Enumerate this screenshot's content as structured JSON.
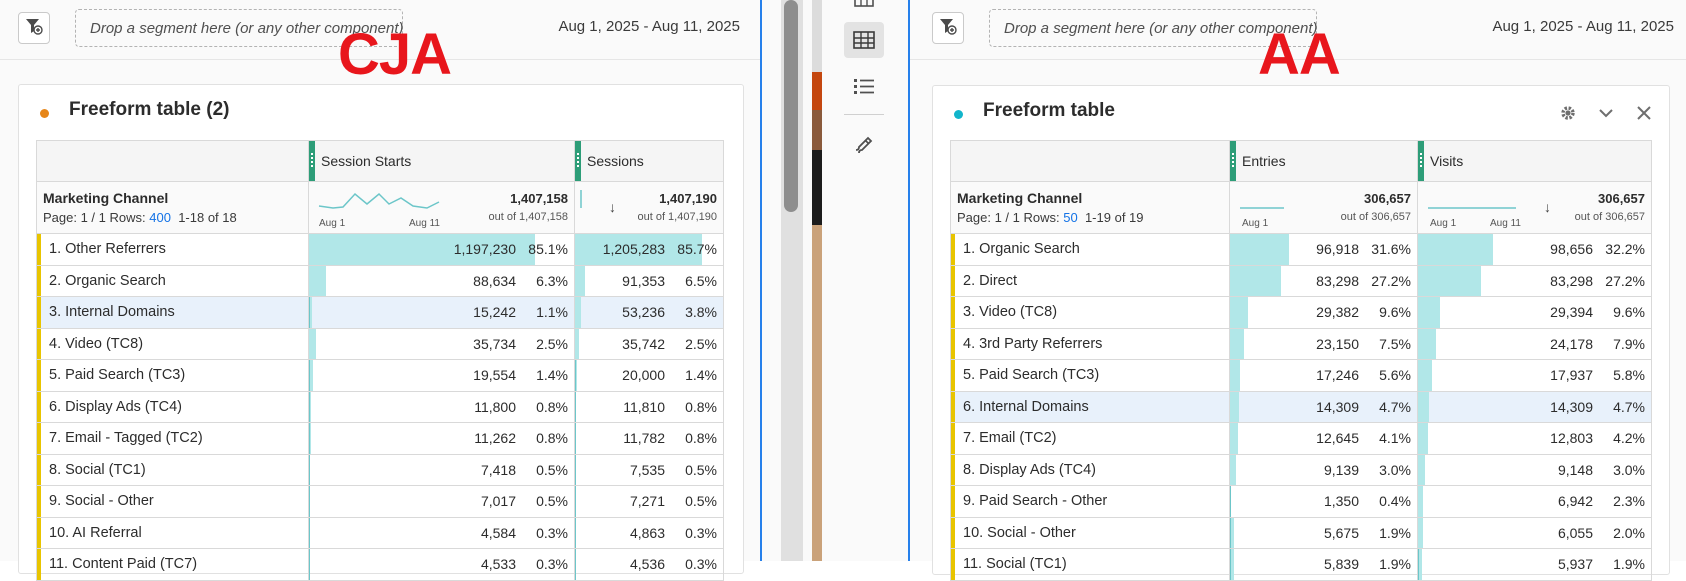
{
  "labels": {
    "left": "CJA",
    "right": "AA"
  },
  "left": {
    "drop_zone": "Drop a segment here (or any other component)",
    "date_range": "Aug 1, 2025 - Aug 11, 2025",
    "card_title": "Freeform table (2)",
    "dot_color": "#e68619",
    "dimension": {
      "title": "Marketing Channel",
      "page_label": "Page: 1 / 1 Rows:",
      "rows_value": "400",
      "range": "1-18 of 18"
    },
    "metric1": {
      "name": "Session Starts",
      "total": "1,407,158",
      "out_of": "out of 1,407,158",
      "axis_start": "Aug 1",
      "axis_end": "Aug 11"
    },
    "metric2": {
      "name": "Sessions",
      "total": "1,407,190",
      "out_of": "out of 1,407,190"
    },
    "rows": [
      {
        "label": "1.  Other Referrers",
        "m1": "1,197,230",
        "m1p": "85.1%",
        "m1f": 0.851,
        "m2": "1,205,283",
        "m2p": "85.7%",
        "m2f": 0.857
      },
      {
        "label": "2.  Organic Search",
        "m1": "88,634",
        "m1p": "6.3%",
        "m1f": 0.063,
        "m2": "91,353",
        "m2p": "6.5%",
        "m2f": 0.065
      },
      {
        "label": "3.  Internal Domains",
        "m1": "15,242",
        "m1p": "1.1%",
        "m1f": 0.011,
        "m2": "53,236",
        "m2p": "3.8%",
        "m2f": 0.038,
        "selected": true
      },
      {
        "label": "4.  Video (TC8)",
        "m1": "35,734",
        "m1p": "2.5%",
        "m1f": 0.025,
        "m2": "35,742",
        "m2p": "2.5%",
        "m2f": 0.025
      },
      {
        "label": "5.  Paid Search (TC3)",
        "m1": "19,554",
        "m1p": "1.4%",
        "m1f": 0.014,
        "m2": "20,000",
        "m2p": "1.4%",
        "m2f": 0.014
      },
      {
        "label": "6.  Display Ads (TC4)",
        "m1": "11,800",
        "m1p": "0.8%",
        "m1f": 0.008,
        "m2": "11,810",
        "m2p": "0.8%",
        "m2f": 0.008
      },
      {
        "label": "7.  Email - Tagged (TC2)",
        "m1": "11,262",
        "m1p": "0.8%",
        "m1f": 0.008,
        "m2": "11,782",
        "m2p": "0.8%",
        "m2f": 0.008
      },
      {
        "label": "8.  Social (TC1)",
        "m1": "7,418",
        "m1p": "0.5%",
        "m1f": 0.005,
        "m2": "7,535",
        "m2p": "0.5%",
        "m2f": 0.005
      },
      {
        "label": "9.  Social - Other",
        "m1": "7,017",
        "m1p": "0.5%",
        "m1f": 0.005,
        "m2": "7,271",
        "m2p": "0.5%",
        "m2f": 0.005
      },
      {
        "label": "10.  AI Referral",
        "m1": "4,584",
        "m1p": "0.3%",
        "m1f": 0.003,
        "m2": "4,863",
        "m2p": "0.3%",
        "m2f": 0.003
      },
      {
        "label": "11.  Content Paid (TC7)",
        "m1": "4,533",
        "m1p": "0.3%",
        "m1f": 0.003,
        "m2": "4,536",
        "m2p": "0.3%",
        "m2f": 0.003
      }
    ]
  },
  "right": {
    "drop_zone": "Drop a segment here (or any other component)",
    "date_range": "Aug 1, 2025 - Aug 11, 2025",
    "card_title": "Freeform table",
    "dot_color": "#12b5cb",
    "dimension": {
      "title": "Marketing Channel",
      "page_label": "Page: 1 / 1 Rows:",
      "rows_value": "50",
      "range": "1-19 of 19"
    },
    "metric1": {
      "name": "Entries",
      "total": "306,657",
      "out_of": "out of 306,657",
      "axis_start": "Aug 1"
    },
    "metric2": {
      "name": "Visits",
      "total": "306,657",
      "out_of": "out of 306,657",
      "axis_start": "Aug 1",
      "axis_end": "Aug 11"
    },
    "rows": [
      {
        "label": "1.  Organic Search",
        "m1": "96,918",
        "m1p": "31.6%",
        "m1f": 0.316,
        "m2": "98,656",
        "m2p": "32.2%",
        "m2f": 0.322
      },
      {
        "label": "2.  Direct",
        "m1": "83,298",
        "m1p": "27.2%",
        "m1f": 0.272,
        "m2": "83,298",
        "m2p": "27.2%",
        "m2f": 0.272
      },
      {
        "label": "3.  Video (TC8)",
        "m1": "29,382",
        "m1p": "9.6%",
        "m1f": 0.096,
        "m2": "29,394",
        "m2p": "9.6%",
        "m2f": 0.096
      },
      {
        "label": "4.  3rd Party Referrers",
        "m1": "23,150",
        "m1p": "7.5%",
        "m1f": 0.075,
        "m2": "24,178",
        "m2p": "7.9%",
        "m2f": 0.079
      },
      {
        "label": "5.  Paid Search (TC3)",
        "m1": "17,246",
        "m1p": "5.6%",
        "m1f": 0.056,
        "m2": "17,937",
        "m2p": "5.8%",
        "m2f": 0.058
      },
      {
        "label": "6.  Internal Domains",
        "m1": "14,309",
        "m1p": "4.7%",
        "m1f": 0.047,
        "m2": "14,309",
        "m2p": "4.7%",
        "m2f": 0.047,
        "selected": true
      },
      {
        "label": "7.  Email (TC2)",
        "m1": "12,645",
        "m1p": "4.1%",
        "m1f": 0.041,
        "m2": "12,803",
        "m2p": "4.2%",
        "m2f": 0.042
      },
      {
        "label": "8.  Display Ads (TC4)",
        "m1": "9,139",
        "m1p": "3.0%",
        "m1f": 0.03,
        "m2": "9,148",
        "m2p": "3.0%",
        "m2f": 0.03
      },
      {
        "label": "9.  Paid Search - Other",
        "m1": "1,350",
        "m1p": "0.4%",
        "m1f": 0.004,
        "m2": "6,942",
        "m2p": "2.3%",
        "m2f": 0.023
      },
      {
        "label": "10.  Social - Other",
        "m1": "5,675",
        "m1p": "1.9%",
        "m1f": 0.019,
        "m2": "6,055",
        "m2p": "2.0%",
        "m2f": 0.02
      },
      {
        "label": "11.  Social (TC1)",
        "m1": "5,839",
        "m1p": "1.9%",
        "m1f": 0.019,
        "m2": "5,937",
        "m2p": "1.9%",
        "m2f": 0.019
      }
    ]
  },
  "rail": {
    "tools": [
      "table-view-icon",
      "list-icon",
      "paint-brush-icon"
    ]
  },
  "colors": {
    "accent": "#2680eb",
    "bar": "#b1e7e8",
    "dimension_stripe": "#e8c400",
    "grip": "#2d9d78",
    "label_red": "#e8161c"
  }
}
